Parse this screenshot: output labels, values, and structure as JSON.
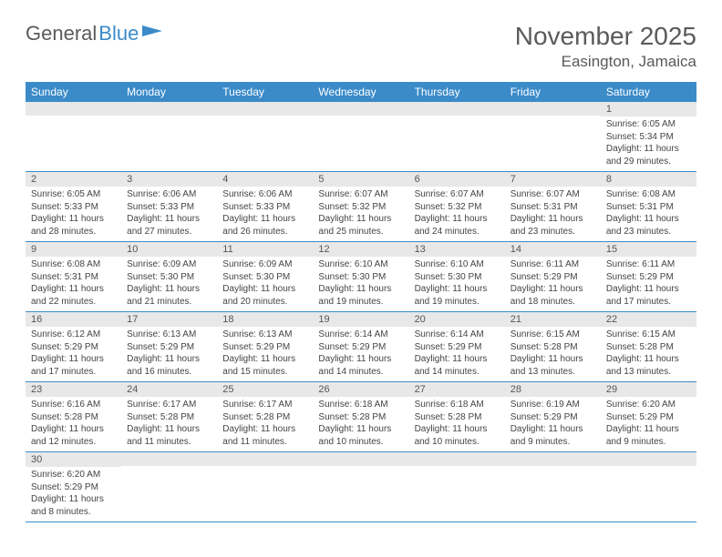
{
  "logo": {
    "text_general": "General",
    "text_blue": "Blue"
  },
  "header": {
    "month_title": "November 2025",
    "location": "Easington, Jamaica"
  },
  "colors": {
    "header_bg": "#3b8bc9",
    "header_text": "#ffffff",
    "daynum_bg": "#e8e8e8",
    "cell_border": "#3b8bc9",
    "body_text": "#444444",
    "title_text": "#5a5a5a"
  },
  "weekdays": [
    "Sunday",
    "Monday",
    "Tuesday",
    "Wednesday",
    "Thursday",
    "Friday",
    "Saturday"
  ],
  "weeks": [
    [
      {
        "num": "",
        "lines": [
          "",
          "",
          "",
          ""
        ]
      },
      {
        "num": "",
        "lines": [
          "",
          "",
          "",
          ""
        ]
      },
      {
        "num": "",
        "lines": [
          "",
          "",
          "",
          ""
        ]
      },
      {
        "num": "",
        "lines": [
          "",
          "",
          "",
          ""
        ]
      },
      {
        "num": "",
        "lines": [
          "",
          "",
          "",
          ""
        ]
      },
      {
        "num": "",
        "lines": [
          "",
          "",
          "",
          ""
        ]
      },
      {
        "num": "1",
        "lines": [
          "Sunrise: 6:05 AM",
          "Sunset: 5:34 PM",
          "Daylight: 11 hours",
          "and 29 minutes."
        ]
      }
    ],
    [
      {
        "num": "2",
        "lines": [
          "Sunrise: 6:05 AM",
          "Sunset: 5:33 PM",
          "Daylight: 11 hours",
          "and 28 minutes."
        ]
      },
      {
        "num": "3",
        "lines": [
          "Sunrise: 6:06 AM",
          "Sunset: 5:33 PM",
          "Daylight: 11 hours",
          "and 27 minutes."
        ]
      },
      {
        "num": "4",
        "lines": [
          "Sunrise: 6:06 AM",
          "Sunset: 5:33 PM",
          "Daylight: 11 hours",
          "and 26 minutes."
        ]
      },
      {
        "num": "5",
        "lines": [
          "Sunrise: 6:07 AM",
          "Sunset: 5:32 PM",
          "Daylight: 11 hours",
          "and 25 minutes."
        ]
      },
      {
        "num": "6",
        "lines": [
          "Sunrise: 6:07 AM",
          "Sunset: 5:32 PM",
          "Daylight: 11 hours",
          "and 24 minutes."
        ]
      },
      {
        "num": "7",
        "lines": [
          "Sunrise: 6:07 AM",
          "Sunset: 5:31 PM",
          "Daylight: 11 hours",
          "and 23 minutes."
        ]
      },
      {
        "num": "8",
        "lines": [
          "Sunrise: 6:08 AM",
          "Sunset: 5:31 PM",
          "Daylight: 11 hours",
          "and 23 minutes."
        ]
      }
    ],
    [
      {
        "num": "9",
        "lines": [
          "Sunrise: 6:08 AM",
          "Sunset: 5:31 PM",
          "Daylight: 11 hours",
          "and 22 minutes."
        ]
      },
      {
        "num": "10",
        "lines": [
          "Sunrise: 6:09 AM",
          "Sunset: 5:30 PM",
          "Daylight: 11 hours",
          "and 21 minutes."
        ]
      },
      {
        "num": "11",
        "lines": [
          "Sunrise: 6:09 AM",
          "Sunset: 5:30 PM",
          "Daylight: 11 hours",
          "and 20 minutes."
        ]
      },
      {
        "num": "12",
        "lines": [
          "Sunrise: 6:10 AM",
          "Sunset: 5:30 PM",
          "Daylight: 11 hours",
          "and 19 minutes."
        ]
      },
      {
        "num": "13",
        "lines": [
          "Sunrise: 6:10 AM",
          "Sunset: 5:30 PM",
          "Daylight: 11 hours",
          "and 19 minutes."
        ]
      },
      {
        "num": "14",
        "lines": [
          "Sunrise: 6:11 AM",
          "Sunset: 5:29 PM",
          "Daylight: 11 hours",
          "and 18 minutes."
        ]
      },
      {
        "num": "15",
        "lines": [
          "Sunrise: 6:11 AM",
          "Sunset: 5:29 PM",
          "Daylight: 11 hours",
          "and 17 minutes."
        ]
      }
    ],
    [
      {
        "num": "16",
        "lines": [
          "Sunrise: 6:12 AM",
          "Sunset: 5:29 PM",
          "Daylight: 11 hours",
          "and 17 minutes."
        ]
      },
      {
        "num": "17",
        "lines": [
          "Sunrise: 6:13 AM",
          "Sunset: 5:29 PM",
          "Daylight: 11 hours",
          "and 16 minutes."
        ]
      },
      {
        "num": "18",
        "lines": [
          "Sunrise: 6:13 AM",
          "Sunset: 5:29 PM",
          "Daylight: 11 hours",
          "and 15 minutes."
        ]
      },
      {
        "num": "19",
        "lines": [
          "Sunrise: 6:14 AM",
          "Sunset: 5:29 PM",
          "Daylight: 11 hours",
          "and 14 minutes."
        ]
      },
      {
        "num": "20",
        "lines": [
          "Sunrise: 6:14 AM",
          "Sunset: 5:29 PM",
          "Daylight: 11 hours",
          "and 14 minutes."
        ]
      },
      {
        "num": "21",
        "lines": [
          "Sunrise: 6:15 AM",
          "Sunset: 5:28 PM",
          "Daylight: 11 hours",
          "and 13 minutes."
        ]
      },
      {
        "num": "22",
        "lines": [
          "Sunrise: 6:15 AM",
          "Sunset: 5:28 PM",
          "Daylight: 11 hours",
          "and 13 minutes."
        ]
      }
    ],
    [
      {
        "num": "23",
        "lines": [
          "Sunrise: 6:16 AM",
          "Sunset: 5:28 PM",
          "Daylight: 11 hours",
          "and 12 minutes."
        ]
      },
      {
        "num": "24",
        "lines": [
          "Sunrise: 6:17 AM",
          "Sunset: 5:28 PM",
          "Daylight: 11 hours",
          "and 11 minutes."
        ]
      },
      {
        "num": "25",
        "lines": [
          "Sunrise: 6:17 AM",
          "Sunset: 5:28 PM",
          "Daylight: 11 hours",
          "and 11 minutes."
        ]
      },
      {
        "num": "26",
        "lines": [
          "Sunrise: 6:18 AM",
          "Sunset: 5:28 PM",
          "Daylight: 11 hours",
          "and 10 minutes."
        ]
      },
      {
        "num": "27",
        "lines": [
          "Sunrise: 6:18 AM",
          "Sunset: 5:28 PM",
          "Daylight: 11 hours",
          "and 10 minutes."
        ]
      },
      {
        "num": "28",
        "lines": [
          "Sunrise: 6:19 AM",
          "Sunset: 5:29 PM",
          "Daylight: 11 hours",
          "and 9 minutes."
        ]
      },
      {
        "num": "29",
        "lines": [
          "Sunrise: 6:20 AM",
          "Sunset: 5:29 PM",
          "Daylight: 11 hours",
          "and 9 minutes."
        ]
      }
    ],
    [
      {
        "num": "30",
        "lines": [
          "Sunrise: 6:20 AM",
          "Sunset: 5:29 PM",
          "Daylight: 11 hours",
          "and 8 minutes."
        ]
      },
      {
        "num": "",
        "lines": [
          "",
          "",
          "",
          ""
        ]
      },
      {
        "num": "",
        "lines": [
          "",
          "",
          "",
          ""
        ]
      },
      {
        "num": "",
        "lines": [
          "",
          "",
          "",
          ""
        ]
      },
      {
        "num": "",
        "lines": [
          "",
          "",
          "",
          ""
        ]
      },
      {
        "num": "",
        "lines": [
          "",
          "",
          "",
          ""
        ]
      },
      {
        "num": "",
        "lines": [
          "",
          "",
          "",
          ""
        ]
      }
    ]
  ]
}
